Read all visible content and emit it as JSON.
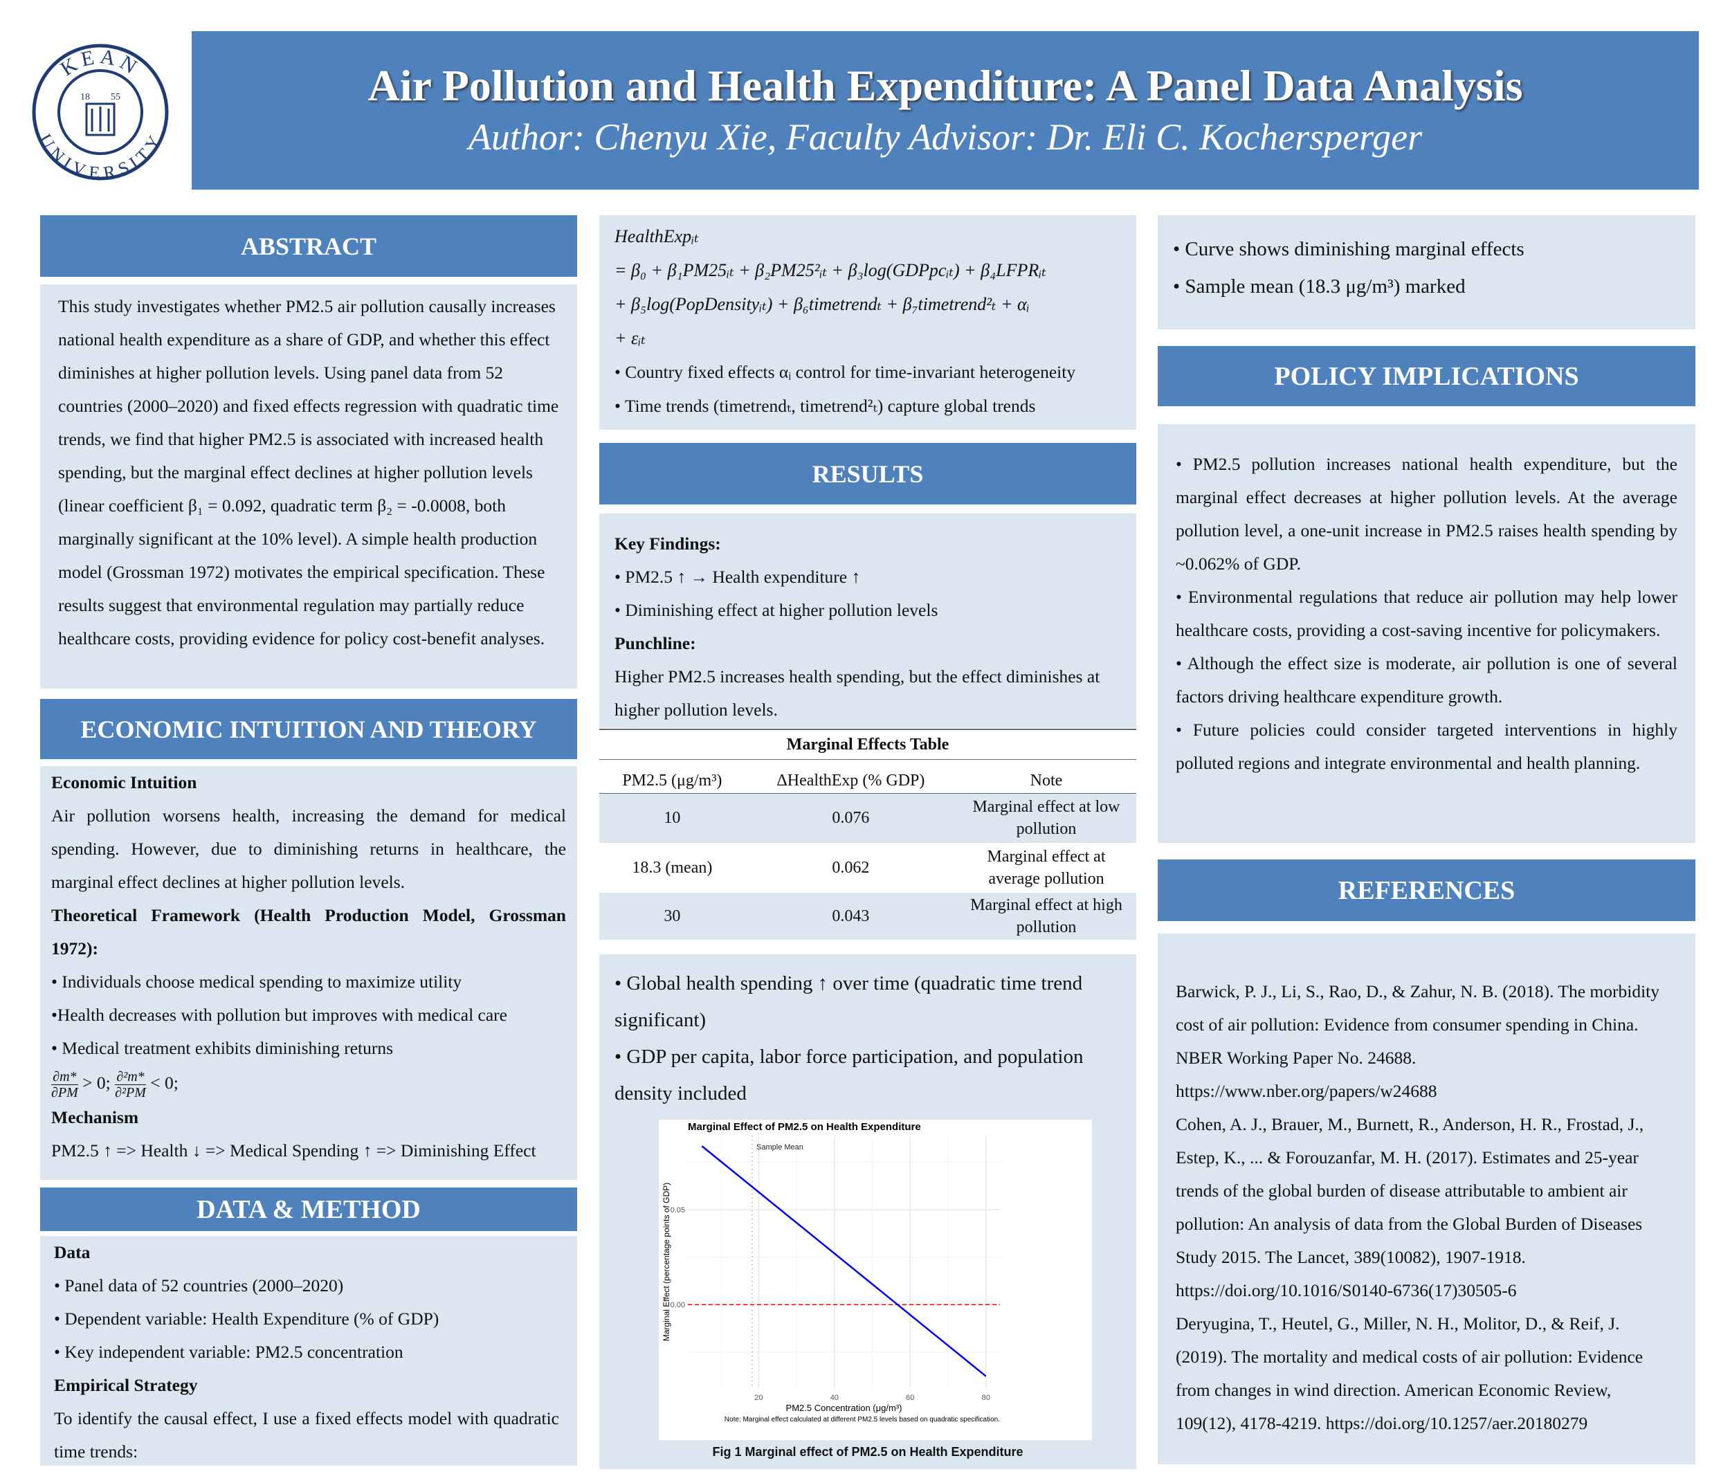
{
  "logo": {
    "text_top": "KEAN",
    "text_bottom": "UNIVERSITY",
    "year_left": "18",
    "year_right": "55"
  },
  "header": {
    "title": "Air Pollution and Health Expenditure: A Panel Data Analysis",
    "author": "Author: Chenyu Xie, Faculty Advisor: Dr. Eli C. Kochersperger"
  },
  "colors": {
    "header_blue": "#4f81bd",
    "box_bg": "#dce6f0",
    "line": "#0000ff",
    "zero_line": "#ff0000"
  },
  "abstract": {
    "heading": "ABSTRACT",
    "text": "This study investigates whether PM2.5 air pollution causally increases national health expenditure as a share of GDP, and whether this effect diminishes at higher pollution levels. Using panel data from 52 countries (2000–2020) and fixed effects regression with quadratic time trends, we find that higher PM2.5 is associated with increased health spending, but the marginal effect declines at higher pollution levels (linear coefficient β₁ = 0.092, quadratic term β₂ = -0.0008, both marginally significant at the 10% level). A simple health production model (Grossman 1972) motivates the empirical specification. These results suggest that environmental regulation may partially reduce healthcare costs, providing evidence for policy cost-benefit analyses."
  },
  "theory": {
    "heading": "ECONOMIC INTUITION AND THEORY",
    "intuition_title": "Economic Intuition",
    "intuition": "Air pollution worsens health, increasing the demand for medical spending. However, due to diminishing returns in healthcare, the marginal effect declines at higher pollution levels.",
    "framework_title": "Theoretical Framework (Health Production Model, Grossman 1972):",
    "bullets": [
      "• Individuals choose medical spending to maximize utility",
      "•Health decreases with pollution but improves with medical care",
      "• Medical treatment exhibits diminishing returns"
    ],
    "deriv": {
      "n1": "∂m*",
      "d1": "∂PM",
      "r1": " > 0;",
      "n2": "∂²m*",
      "d2": "∂²PM",
      "r2": " < 0;"
    },
    "mechanism_title": "Mechanism",
    "mechanism": "PM2.5 ↑ => Health ↓ => Medical Spending ↑ => Diminishing Effect"
  },
  "data_method": {
    "heading": "DATA & METHOD",
    "data_title": "Data",
    "bullets": [
      "• Panel data of 52 countries (2000–2020)",
      "• Dependent variable: Health Expenditure (% of GDP)",
      "• Key independent variable: PM2.5 concentration"
    ],
    "strategy_title": "Empirical Strategy",
    "strategy": "To identify the causal effect, I use a fixed effects model with quadratic time trends:"
  },
  "equation": {
    "lines": [
      "HealthExpᵢₜ",
      "= β₀ + β₁PM25ᵢₜ + β₂PM25²ᵢₜ + β₃log(GDPpcᵢₜ) + β₄LFPRᵢₜ",
      "+ β₅log(PopDensityᵢₜ) + β₆timetrendₜ + β₇timetrend²ₜ + αᵢ",
      "+ εᵢₜ"
    ],
    "bullets": [
      "• Country fixed effects αᵢ control for time-invariant heterogeneity",
      "• Time trends (timetrendₜ, timetrend²ₜ) capture global trends"
    ]
  },
  "results": {
    "heading": "RESULTS",
    "key_title": "Key Findings:",
    "key_bullets": [
      "• PM2.5 ↑ → Health expenditure ↑",
      "• Diminishing effect at higher pollution levels"
    ],
    "punch_title": "Punchline:",
    "punchline": "Higher PM2.5 increases health spending, but the effect diminishes at higher pollution levels.",
    "table": {
      "title": "Marginal Effects Table",
      "columns": [
        "PM2.5 (μg/m³)",
        "ΔHealthExp (% GDP)",
        "Note"
      ],
      "rows": [
        [
          "10",
          "0.076",
          "Marginal effect at low pollution"
        ],
        [
          "18.3 (mean)",
          "0.062",
          "Marginal effect at average pollution"
        ],
        [
          "30",
          "0.043",
          "Marginal effect at high pollution"
        ]
      ]
    },
    "bullets": [
      "• Global health spending ↑ over time (quadratic time trend significant)",
      "• GDP per capita, labor force participation, and population density included"
    ],
    "caption": "Fig 1 Marginal effect of PM2.5 on Health Expenditure"
  },
  "chart_data": {
    "type": "line",
    "title": "Marginal Effect of PM2.5 on Health Expenditure",
    "xlabel": "PM2.5 Concentration (μg/m³)",
    "ylabel": "Marginal Effect (percentage points of GDP)",
    "note": "Note: Marginal effect calculated at different PM2.5 levels based on quadratic specification.",
    "x_ticks": [
      20,
      40,
      60,
      80
    ],
    "y_ticks": [
      0.0,
      0.05
    ],
    "y_tick_labels": [
      "0.00",
      "0.05"
    ],
    "xlim": [
      1.3,
      83.7
    ],
    "ylim": [
      -0.044,
      0.089
    ],
    "grid": true,
    "series": [
      {
        "x": [
          5,
          80
        ],
        "y": [
          0.0835,
          -0.0377
        ]
      }
    ],
    "hlines": [
      {
        "y": 0,
        "style": "dashed",
        "color": "#ff0000"
      }
    ],
    "vlines": [
      {
        "x": 18.3,
        "style": "dotted",
        "label": "Sample Mean"
      }
    ]
  },
  "right_top": {
    "bullets": [
      "• Curve shows diminishing marginal effects",
      "• Sample mean (18.3 μg/m³) marked"
    ]
  },
  "policy": {
    "heading": "POLICY IMPLICATIONS",
    "bullets": [
      "• PM2.5 pollution increases national health expenditure, but the marginal effect decreases at higher pollution levels. At the average pollution level, a one-unit increase in PM2.5 raises health spending by ~0.062% of GDP.",
      "• Environmental regulations that reduce air pollution may help lower healthcare costs, providing a cost-saving incentive for policymakers.",
      "• Although the effect size is moderate, air pollution is one of several factors driving healthcare expenditure growth.",
      "• Future policies could consider targeted interventions in highly polluted regions and integrate environmental and health planning."
    ]
  },
  "references": {
    "heading": "REFERENCES",
    "items": [
      "Barwick, P. J., Li, S., Rao, D., & Zahur, N. B. (2018). The morbidity cost of air pollution: Evidence from consumer spending in China. NBER Working Paper No. 24688. https://www.nber.org/papers/w24688",
      "Cohen, A. J., Brauer, M., Burnett, R., Anderson, H. R., Frostad, J., Estep, K., ... & Forouzanfar, M. H. (2017). Estimates and 25-year trends of the global burden of disease attributable to ambient air pollution: An analysis of data from the Global Burden of Diseases Study 2015. The Lancet, 389(10082), 1907-1918. https://doi.org/10.1016/S0140-6736(17)30505-6",
      "Deryugina, T., Heutel, G., Miller, N. H., Molitor, D., & Reif, J. (2019). The mortality and medical costs of air pollution: Evidence from changes in wind direction. American Economic Review, 109(12), 4178-4219. https://doi.org/10.1257/aer.20180279"
    ]
  }
}
